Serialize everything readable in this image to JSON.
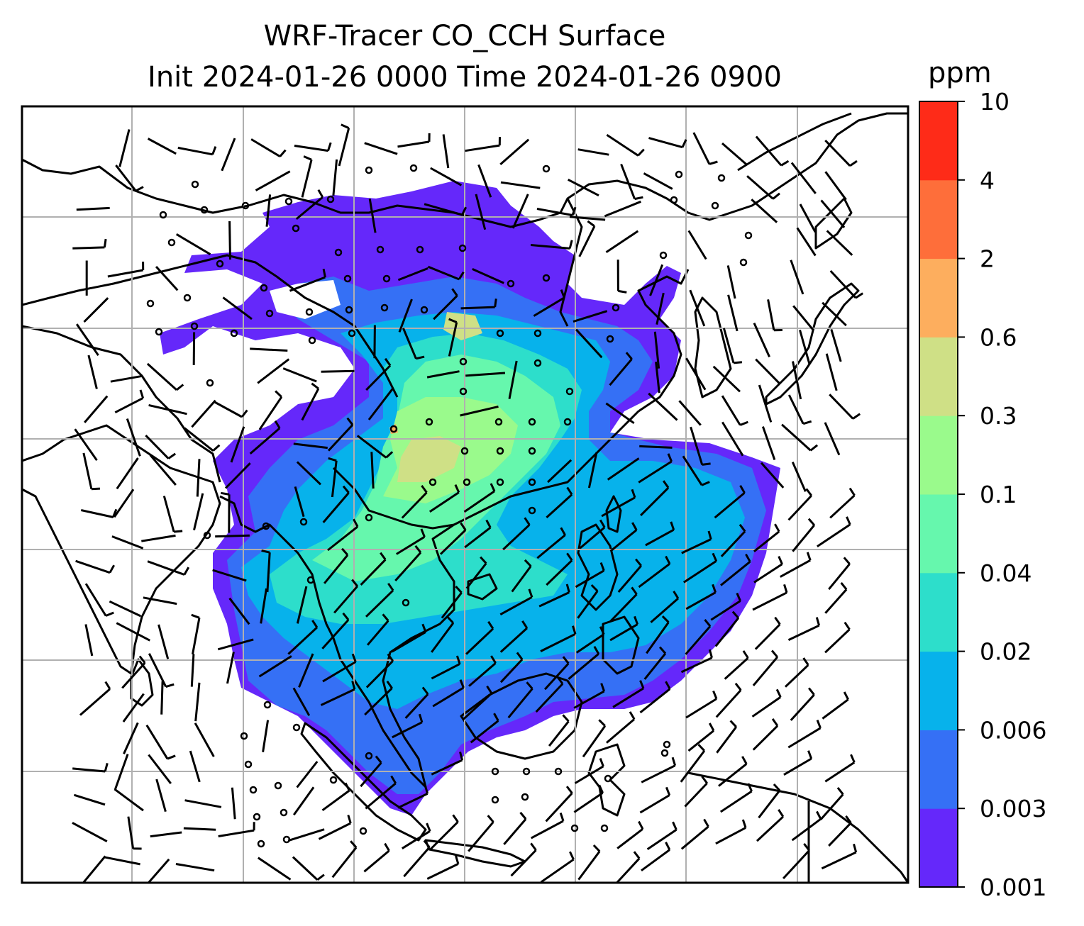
{
  "title_line1": "WRF-Tracer CO_CCH Surface",
  "title_line2": "Init 2024-01-26 0000 Time 2024-01-26 0900",
  "colorbar": {
    "unit": "ppm",
    "levels": [
      "0.001",
      "0.003",
      "0.006",
      "0.02",
      "0.04",
      "0.1",
      "0.3",
      "0.6",
      "2",
      "4",
      "10"
    ],
    "colors": [
      "#6528fa",
      "#3570f5",
      "#07b2eb",
      "#2ddecb",
      "#66f7ad",
      "#9afa8c",
      "#cfe086",
      "#fdae5e",
      "#fe6e3a",
      "#fe2b18"
    ]
  },
  "map": {
    "background": "#ffffff",
    "grid_color": "#b0b0b0",
    "coast_color": "#000000"
  }
}
